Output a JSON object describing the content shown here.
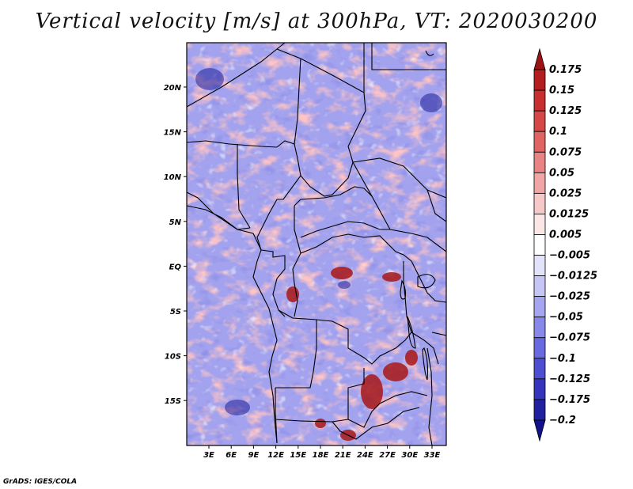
{
  "title": "Vertical velocity [m/s] at 300hPa, VT: 2020030200",
  "credit": "GrADS: IGES/COLA",
  "map": {
    "variable": "Vertical velocity",
    "units": "m/s",
    "level": "300hPa",
    "valid_time": "2020030200",
    "lat_ticks": [
      "20N",
      "15N",
      "10N",
      "5N",
      "EQ",
      "5S",
      "10S",
      "15S"
    ],
    "lon_ticks": [
      "3E",
      "6E",
      "9E",
      "12E",
      "15E",
      "18E",
      "21E",
      "24E",
      "27E",
      "30E",
      "33E"
    ]
  },
  "colorbar": {
    "levels": [
      "0.175",
      "0.15",
      "0.125",
      "0.1",
      "0.075",
      "0.05",
      "0.025",
      "0.0125",
      "0.005",
      "−0.005",
      "−0.0125",
      "−0.025",
      "−0.05",
      "−0.075",
      "−0.1",
      "−0.125",
      "−0.175",
      "−0.2"
    ],
    "colors": [
      "#9b1414",
      "#b41e1e",
      "#c83030",
      "#d64848",
      "#e06464",
      "#e98484",
      "#f1a6a6",
      "#f7c8c8",
      "#fbe6e6",
      "#ffffff",
      "#e2e2fb",
      "#c6c6f6",
      "#a6a6f0",
      "#8888ea",
      "#6a6ae0",
      "#4e4ed2",
      "#3434bc",
      "#2020a0",
      "#12128a"
    ]
  }
}
